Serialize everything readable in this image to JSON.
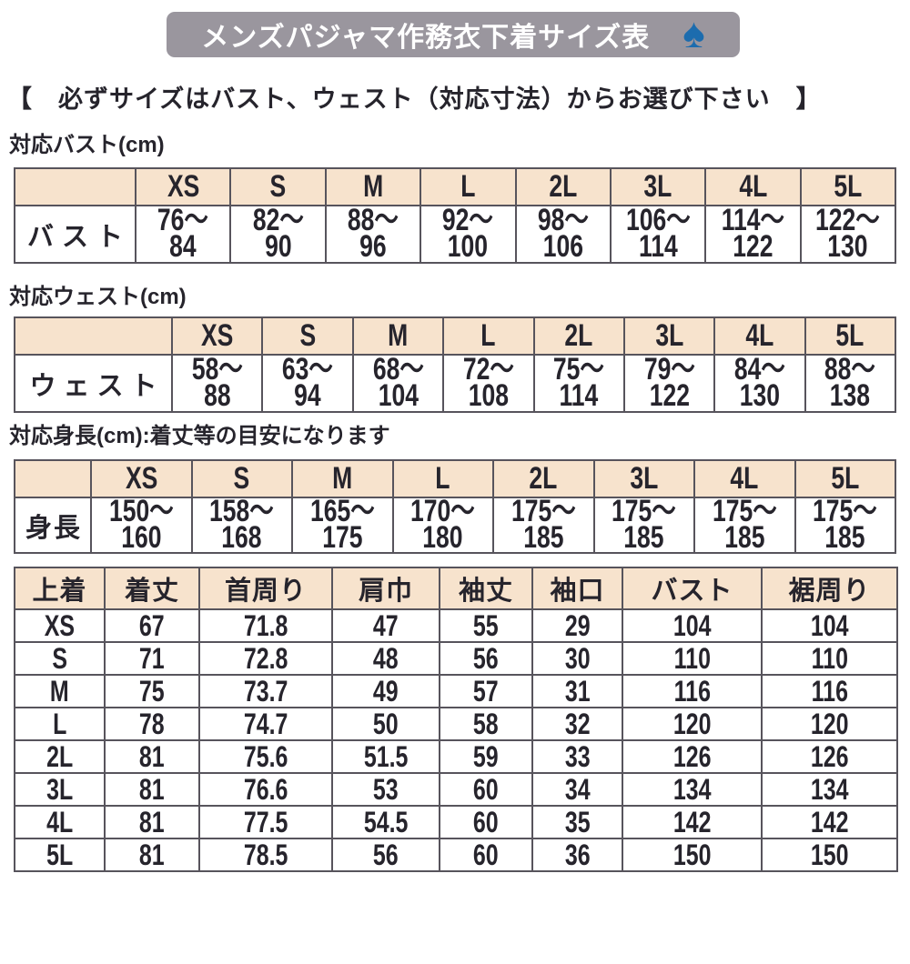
{
  "banner": {
    "title": "メンズパジャマ作務衣下着サイズ表",
    "spade_icon": "♠"
  },
  "notice": "【　必ずサイズはバスト、ウェスト（対応寸法）からお選び下さい　】",
  "sizes": [
    "XS",
    "S",
    "M",
    "L",
    "2L",
    "3L",
    "4L",
    "5L"
  ],
  "bust_section": {
    "label": "対応バスト(cm)",
    "row_label": "バスト",
    "ranges": [
      [
        "76〜",
        "84"
      ],
      [
        "82〜",
        "90"
      ],
      [
        "88〜",
        "96"
      ],
      [
        "92〜",
        "100"
      ],
      [
        "98〜",
        "106"
      ],
      [
        "106〜",
        "114"
      ],
      [
        "114〜",
        "122"
      ],
      [
        "122〜",
        "130"
      ]
    ]
  },
  "waist_section": {
    "label": "対応ウェスト(cm)",
    "row_label": "ウェスト",
    "ranges": [
      [
        "58〜",
        "88"
      ],
      [
        "63〜",
        "94"
      ],
      [
        "68〜",
        "104"
      ],
      [
        "72〜",
        "108"
      ],
      [
        "75〜",
        "114"
      ],
      [
        "79〜",
        "122"
      ],
      [
        "84〜",
        "130"
      ],
      [
        "88〜",
        "138"
      ]
    ]
  },
  "height_section": {
    "label": "対応身長(cm):着丈等の目安になります",
    "row_label": "身長",
    "ranges": [
      [
        "150〜",
        "160"
      ],
      [
        "158〜",
        "168"
      ],
      [
        "165〜",
        "175"
      ],
      [
        "170〜",
        "180"
      ],
      [
        "175〜",
        "185"
      ],
      [
        "175〜",
        "185"
      ],
      [
        "175〜",
        "185"
      ],
      [
        "175〜",
        "185"
      ]
    ]
  },
  "jacket_table": {
    "headers": [
      "上着",
      "着丈",
      "首周り",
      "肩巾",
      "袖丈",
      "袖口",
      "バスト",
      "裾周り"
    ],
    "rows": [
      [
        "XS",
        "67",
        "71.8",
        "47",
        "55",
        "29",
        "104",
        "104"
      ],
      [
        "S",
        "71",
        "72.8",
        "48",
        "56",
        "30",
        "110",
        "110"
      ],
      [
        "M",
        "75",
        "73.7",
        "49",
        "57",
        "31",
        "116",
        "116"
      ],
      [
        "L",
        "78",
        "74.7",
        "50",
        "58",
        "32",
        "120",
        "120"
      ],
      [
        "2L",
        "81",
        "75.6",
        "51.5",
        "59",
        "33",
        "126",
        "126"
      ],
      [
        "3L",
        "81",
        "76.6",
        "53",
        "60",
        "34",
        "134",
        "134"
      ],
      [
        "4L",
        "81",
        "77.5",
        "54.5",
        "60",
        "35",
        "142",
        "142"
      ],
      [
        "5L",
        "81",
        "78.5",
        "56",
        "60",
        "36",
        "150",
        "150"
      ]
    ]
  },
  "colors": {
    "banner_bg": "#9a969e",
    "spade_blue": "#1c6cae",
    "table_header_bg": "#f7e3cd",
    "border": "#57545c",
    "text": "#26242c"
  }
}
